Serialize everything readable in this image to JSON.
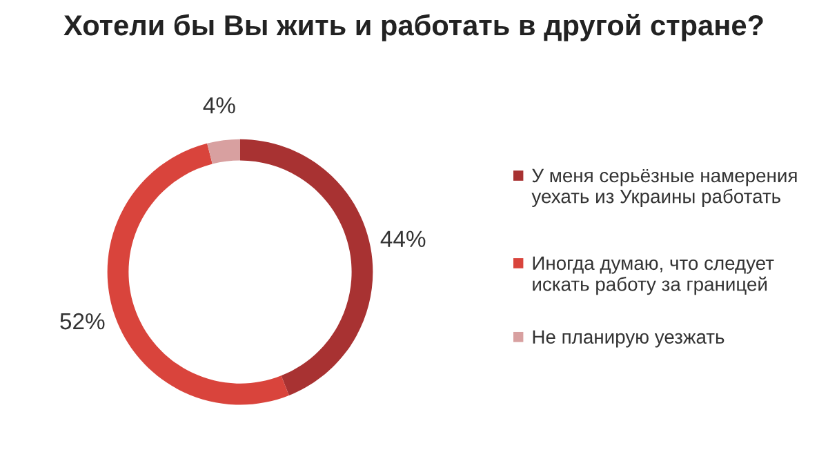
{
  "chart_data": {
    "type": "donut",
    "title": "Хотели бы Вы жить и работать в другой стране?",
    "categories": [
      "У меня серьёзные намерения уехать из Украины работать",
      "Иногда думаю, что следует искать работу за границей",
      "Не планирую уезжать"
    ],
    "values": [
      44,
      52,
      4
    ],
    "colors": [
      "#a83232",
      "#d9443c",
      "#d8a0a0"
    ],
    "value_labels": [
      "44%",
      "52%",
      "4%"
    ],
    "legend": "right"
  }
}
